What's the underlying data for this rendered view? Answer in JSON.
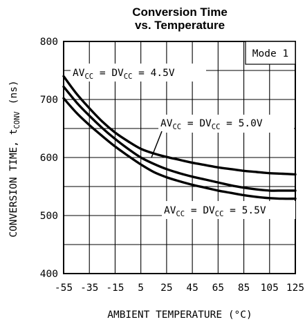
{
  "chart_data": {
    "type": "line",
    "title": "Conversion Time",
    "subtitle": "vs. Temperature",
    "xlabel": "AMBIENT TEMPERATURE (°C)",
    "ylabel": "CONVERSION TIME, tCONV  (ns)",
    "ylabel_parts": {
      "main": "CONVERSION TIME, t",
      "sub": "CONV",
      "unit": "(ns)"
    },
    "xlim": [
      -55,
      125
    ],
    "ylim": [
      400,
      800
    ],
    "xticks": [
      "-55",
      "-35",
      "-15",
      "5",
      "25",
      "45",
      "65",
      "85",
      "105",
      "125"
    ],
    "yticks": [
      "400",
      "500",
      "600",
      "700",
      "800"
    ],
    "grid": true,
    "mode_label": "Mode 1",
    "series": [
      {
        "name": "AVCC = DVCC = 4.5V",
        "label_parts": [
          "AV",
          "CC",
          " = DV",
          "CC",
          " = 4.5V"
        ],
        "x": [
          -55,
          -45,
          -35,
          -25,
          -15,
          -5,
          5,
          15,
          25,
          35,
          45,
          55,
          65,
          75,
          85,
          95,
          105,
          115,
          125
        ],
        "y": [
          740,
          710,
          685,
          662,
          643,
          628,
          615,
          607,
          601,
          596,
          591,
          587,
          583,
          580,
          577,
          575,
          573,
          572,
          571
        ]
      },
      {
        "name": "AVCC = DVCC = 5.0V",
        "label_parts": [
          "AV",
          "CC",
          " = DV",
          "CC",
          " = 5.0V"
        ],
        "x": [
          -55,
          -45,
          -35,
          -25,
          -15,
          -5,
          5,
          15,
          25,
          35,
          45,
          55,
          65,
          75,
          85,
          95,
          105,
          115,
          125
        ],
        "y": [
          722,
          695,
          672,
          651,
          632,
          615,
          600,
          589,
          580,
          573,
          567,
          562,
          557,
          552,
          548,
          545,
          543,
          543,
          543
        ]
      },
      {
        "name": "AVCC = DVCC = 5.5V",
        "label_parts": [
          "AV",
          "CC",
          " = DV",
          "CC",
          " = 5.5V"
        ],
        "x": [
          -55,
          -45,
          -35,
          -25,
          -15,
          -5,
          5,
          15,
          25,
          35,
          45,
          55,
          65,
          75,
          85,
          95,
          105,
          115,
          125
        ],
        "y": [
          702,
          677,
          656,
          637,
          619,
          603,
          588,
          575,
          566,
          559,
          553,
          548,
          543,
          539,
          535,
          532,
          530,
          529,
          529
        ]
      }
    ]
  }
}
